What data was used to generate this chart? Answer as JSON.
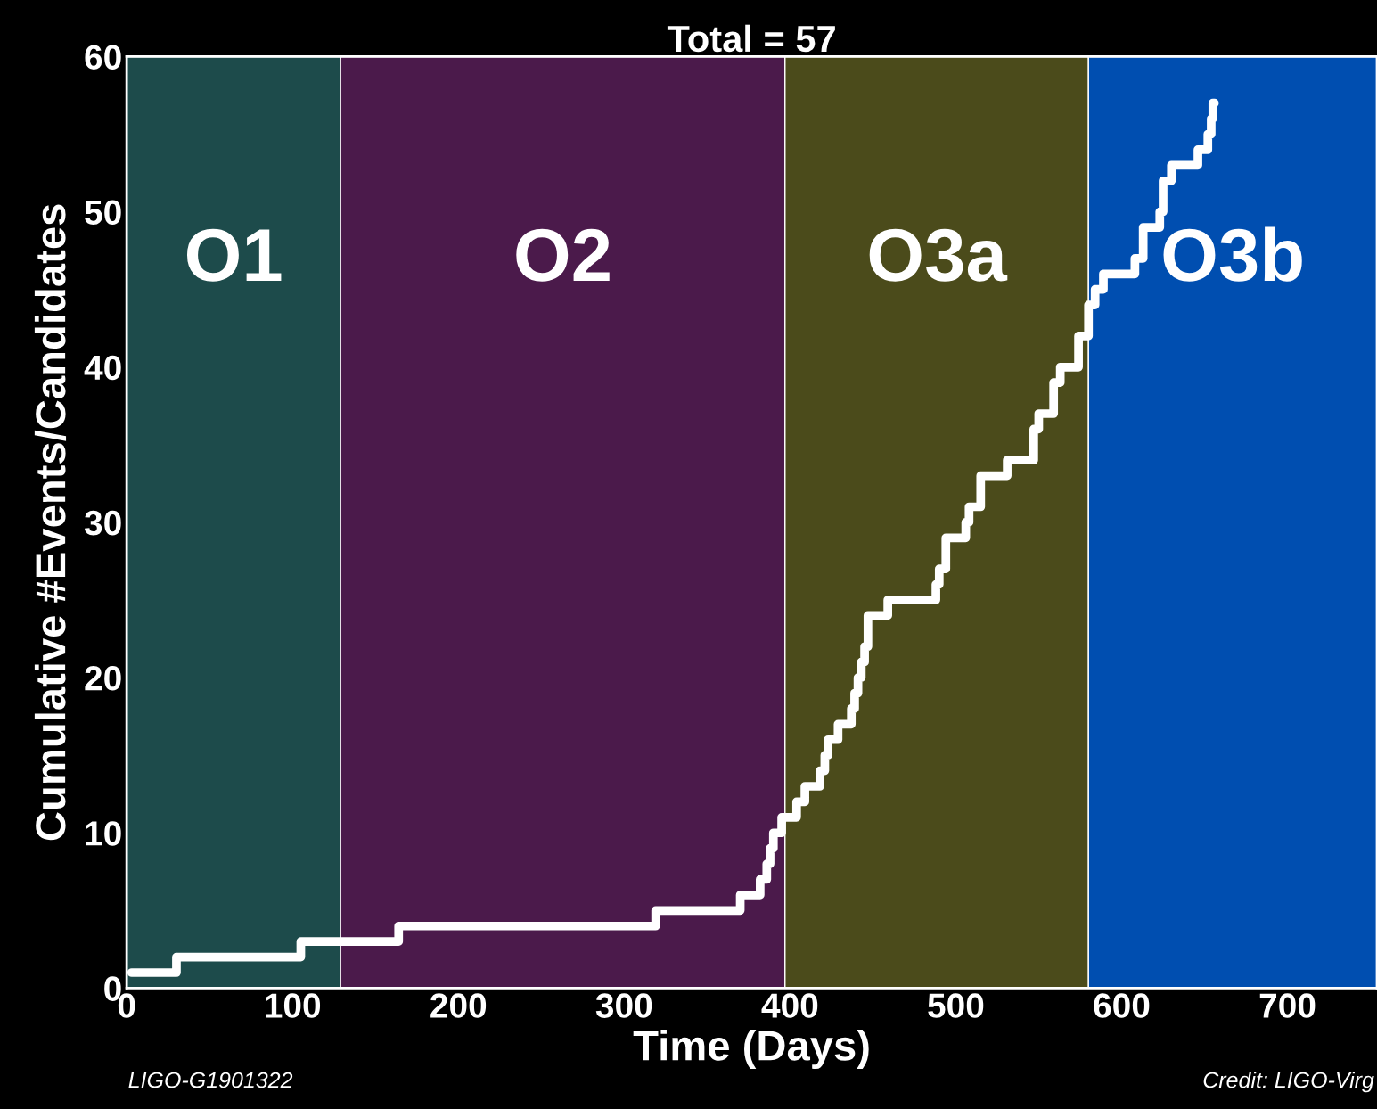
{
  "chart_data": {
    "type": "step",
    "title": "Total = 57",
    "xlabel": "Time (Days)",
    "ylabel": "Cumulative #Events/Candidates",
    "x": [
      3,
      30,
      105,
      164,
      319,
      370,
      382,
      386,
      388,
      390,
      395,
      404,
      409,
      418,
      421,
      423,
      429,
      437,
      439,
      441,
      443,
      445,
      447,
      459,
      488,
      490,
      494,
      506,
      508,
      515,
      531,
      547,
      550,
      559,
      563,
      574,
      580,
      584,
      589,
      608,
      613,
      623,
      625,
      630,
      646,
      652,
      654,
      655,
      656
    ],
    "series": [
      {
        "color": "#ffffff",
        "values": [
          1,
          2,
          3,
          4,
          5,
          6,
          7,
          8,
          9,
          10,
          11,
          12,
          13,
          14,
          15,
          16,
          17,
          18,
          19,
          20,
          21,
          22,
          24,
          25,
          26,
          27,
          29,
          30,
          31,
          33,
          34,
          36,
          37,
          39,
          40,
          42,
          44,
          45,
          46,
          47,
          49,
          50,
          52,
          53,
          54,
          55,
          56,
          57,
          57
        ]
      }
    ],
    "bands": [
      {
        "axis": "x",
        "from": 0,
        "to": 129,
        "label": "O1",
        "color": "#1d4b4b"
      },
      {
        "axis": "x",
        "from": 129,
        "to": 397,
        "label": "O2",
        "color": "#4b1a4b"
      },
      {
        "axis": "x",
        "from": 397,
        "to": 580,
        "label": "O3a",
        "color": "#4b4b1b"
      },
      {
        "axis": "x",
        "from": 580,
        "to": 754,
        "label": "O3b",
        "color": "#004eb0"
      }
    ],
    "xlim": [
      0,
      754
    ],
    "ylim": [
      0,
      60
    ],
    "xticks": [
      0,
      100,
      200,
      300,
      400,
      500,
      600,
      700
    ],
    "yticks": [
      0,
      10,
      20,
      30,
      40,
      50,
      60
    ],
    "grid": false,
    "legend": false,
    "annotations": [
      "LIGO-G1901322",
      "Credit: LIGO-Virg"
    ]
  }
}
